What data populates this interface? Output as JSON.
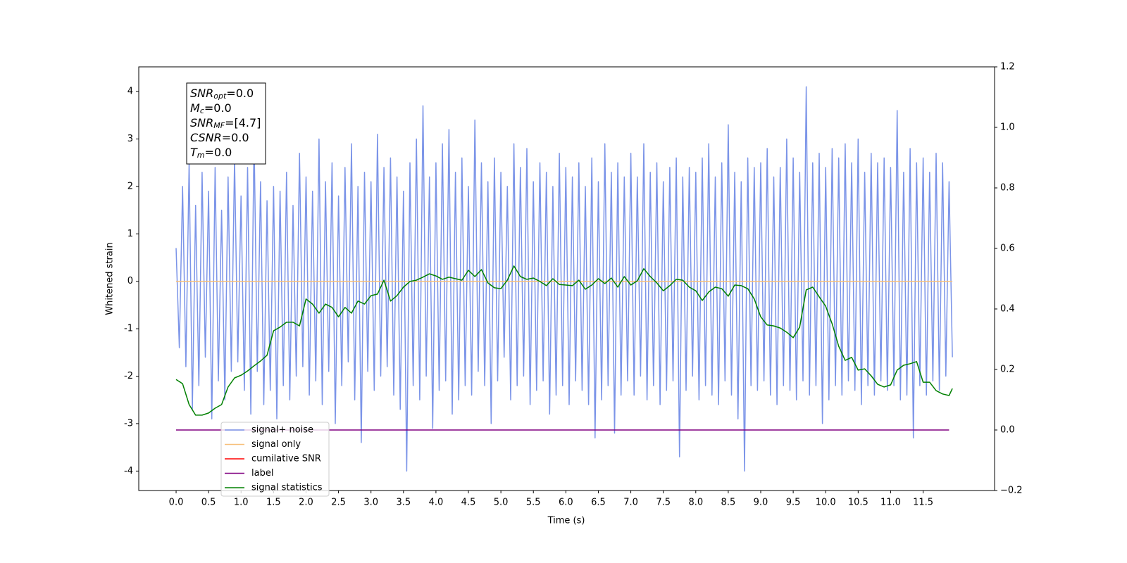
{
  "chart_data": {
    "type": "line",
    "xlabel": "Time (s)",
    "ylabel": "Whitened strain",
    "xlim": [
      -0.575,
      12.6
    ],
    "ylim": [
      -4.41,
      4.52
    ],
    "y2lim": [
      -0.2,
      1.2
    ],
    "xticks": [
      {
        "value": 0,
        "label": "0.0"
      },
      {
        "value": 0.5,
        "label": "0.5"
      },
      {
        "value": 1,
        "label": "1.0"
      },
      {
        "value": 1.5,
        "label": "1.5"
      },
      {
        "value": 2,
        "label": "2.0"
      },
      {
        "value": 2.5,
        "label": "2.5"
      },
      {
        "value": 3,
        "label": "3.0"
      },
      {
        "value": 3.5,
        "label": "3.5"
      },
      {
        "value": 4,
        "label": "4.0"
      },
      {
        "value": 4.5,
        "label": "4.5"
      },
      {
        "value": 5,
        "label": "5.0"
      },
      {
        "value": 5.5,
        "label": "5.5"
      },
      {
        "value": 6,
        "label": "6.0"
      },
      {
        "value": 6.5,
        "label": "6.5"
      },
      {
        "value": 7,
        "label": "7.0"
      },
      {
        "value": 7.5,
        "label": "7.5"
      },
      {
        "value": 8,
        "label": "8.0"
      },
      {
        "value": 8.5,
        "label": "8.5"
      },
      {
        "value": 9,
        "label": "9.0"
      },
      {
        "value": 9.5,
        "label": "9.5"
      },
      {
        "value": 10,
        "label": "10.0"
      },
      {
        "value": 10.5,
        "label": "10.5"
      },
      {
        "value": 11,
        "label": "11.0"
      },
      {
        "value": 11.5,
        "label": "11.5"
      }
    ],
    "yticks": [
      -4,
      -3,
      -2,
      -1,
      0,
      1,
      2,
      3,
      4
    ],
    "y2ticks": [
      {
        "value": -0.2,
        "label": "−0.2"
      },
      {
        "value": 0,
        "label": "0.0"
      },
      {
        "value": 0.2,
        "label": "0.2"
      },
      {
        "value": 0.4,
        "label": "0.4"
      },
      {
        "value": 0.6,
        "label": "0.6"
      },
      {
        "value": 0.8,
        "label": "0.8"
      },
      {
        "value": 1,
        "label": "1.0"
      },
      {
        "value": 1.2,
        "label": "1.2"
      }
    ],
    "legend": "lower left",
    "annotation": [
      {
        "main": "SNR",
        "sub": "opt",
        "rest": "=0.0"
      },
      {
        "main": "M",
        "sub": "c",
        "rest": "=0.0"
      },
      {
        "main": "SNR",
        "sub": "MF",
        "rest": "=[4.7]"
      },
      {
        "main": "CSNR",
        "rest": "=0.0"
      },
      {
        "main": "T",
        "sub": "m",
        "rest": "=0.0"
      }
    ],
    "series": [
      {
        "name": "signal+ noise",
        "color": "#7b94e8",
        "x": [
          0,
          0.05,
          0.1,
          0.15,
          0.2,
          0.25,
          0.3,
          0.35,
          0.4,
          0.45,
          0.5,
          0.55,
          0.6,
          0.65,
          0.7,
          0.75,
          0.8,
          0.85,
          0.9,
          0.95,
          1,
          1.05,
          1.1,
          1.15,
          1.2,
          1.25,
          1.3,
          1.35,
          1.4,
          1.45,
          1.5,
          1.55,
          1.6,
          1.65,
          1.7,
          1.75,
          1.8,
          1.85,
          1.9,
          1.95,
          2,
          2.05,
          2.1,
          2.15,
          2.2,
          2.25,
          2.3,
          2.35,
          2.4,
          2.45,
          2.5,
          2.55,
          2.6,
          2.65,
          2.7,
          2.75,
          2.8,
          2.85,
          2.9,
          2.95,
          3,
          3.05,
          3.1,
          3.15,
          3.2,
          3.25,
          3.3,
          3.35,
          3.4,
          3.45,
          3.5,
          3.55,
          3.6,
          3.65,
          3.7,
          3.75,
          3.8,
          3.85,
          3.9,
          3.95,
          4,
          4.05,
          4.1,
          4.15,
          4.2,
          4.25,
          4.3,
          4.35,
          4.4,
          4.45,
          4.5,
          4.55,
          4.6,
          4.65,
          4.7,
          4.75,
          4.8,
          4.85,
          4.9,
          4.95,
          5,
          5.05,
          5.1,
          5.15,
          5.2,
          5.25,
          5.3,
          5.35,
          5.4,
          5.45,
          5.5,
          5.55,
          5.6,
          5.65,
          5.7,
          5.75,
          5.8,
          5.85,
          5.9,
          5.95,
          6,
          6.05,
          6.1,
          6.15,
          6.2,
          6.25,
          6.3,
          6.35,
          6.4,
          6.45,
          6.5,
          6.55,
          6.6,
          6.65,
          6.7,
          6.75,
          6.8,
          6.85,
          6.9,
          6.95,
          7,
          7.05,
          7.1,
          7.15,
          7.2,
          7.25,
          7.3,
          7.35,
          7.4,
          7.45,
          7.5,
          7.55,
          7.6,
          7.65,
          7.7,
          7.75,
          7.8,
          7.85,
          7.9,
          7.95,
          8,
          8.05,
          8.1,
          8.15,
          8.2,
          8.25,
          8.3,
          8.35,
          8.4,
          8.45,
          8.5,
          8.55,
          8.6,
          8.65,
          8.7,
          8.75,
          8.8,
          8.85,
          8.9,
          8.95,
          9,
          9.05,
          9.1,
          9.15,
          9.2,
          9.25,
          9.3,
          9.35,
          9.4,
          9.45,
          9.5,
          9.55,
          9.6,
          9.65,
          9.7,
          9.75,
          9.8,
          9.85,
          9.9,
          9.95,
          10,
          10.05,
          10.1,
          10.15,
          10.2,
          10.25,
          10.3,
          10.35,
          10.4,
          10.45,
          10.5,
          10.55,
          10.6,
          10.65,
          10.7,
          10.75,
          10.8,
          10.85,
          10.9,
          10.95,
          11,
          11.05,
          11.1,
          11.15,
          11.2,
          11.25,
          11.3,
          11.35,
          11.4,
          11.45,
          11.5,
          11.55,
          11.6,
          11.65,
          11.7,
          11.75,
          11.8,
          11.85,
          11.9,
          11.95
        ],
        "values": [
          0.7,
          -1.4,
          2.0,
          -1.8,
          2.5,
          -2.7,
          1.6,
          -2.2,
          2.3,
          -1.6,
          1.9,
          -2.9,
          2.4,
          -2.1,
          1.5,
          -2.5,
          2.2,
          -1.9,
          2.6,
          -1.7,
          1.8,
          -2.3,
          2.4,
          -2.8,
          3.1,
          -1.9,
          2.1,
          -2.6,
          1.7,
          -2.3,
          2.0,
          -2.9,
          1.9,
          -2.2,
          2.3,
          -2.5,
          1.6,
          -2.0,
          2.7,
          -1.8,
          2.2,
          -2.4,
          1.9,
          -2.1,
          3.0,
          -2.6,
          2.1,
          -1.9,
          2.5,
          -3.0,
          1.8,
          -2.2,
          2.4,
          -1.7,
          2.9,
          -2.5,
          2.0,
          -3.4,
          2.3,
          -1.9,
          2.1,
          -2.3,
          3.1,
          -2.0,
          2.4,
          -1.8,
          2.6,
          -2.4,
          2.2,
          -2.7,
          1.9,
          -4.0,
          2.5,
          -2.2,
          3.0,
          -2.5,
          3.7,
          -2.0,
          2.2,
          -3.1,
          2.5,
          -2.3,
          2.9,
          -2.1,
          3.2,
          -2.8,
          2.3,
          -2.5,
          2.6,
          -2.2,
          2.0,
          -2.4,
          3.4,
          -1.9,
          2.5,
          -2.2,
          2.1,
          -3.0,
          2.6,
          -2.1,
          2.3,
          -1.6,
          2.0,
          -2.5,
          2.9,
          -2.2,
          2.4,
          -2.0,
          2.8,
          -2.6,
          2.1,
          -2.3,
          2.5,
          -2.1,
          2.3,
          -2.8,
          2.0,
          -2.4,
          2.7,
          -2.2,
          2.4,
          -2.6,
          2.2,
          -2.1,
          2.5,
          -2.3,
          2.0,
          -2.6,
          2.6,
          -3.3,
          2.1,
          -2.5,
          2.9,
          -2.2,
          2.3,
          -3.2,
          2.5,
          -2.4,
          2.2,
          -2.1,
          2.7,
          -2.4,
          2.2,
          -2.0,
          2.9,
          -2.5,
          2.3,
          -2.2,
          2.5,
          -2.6,
          2.1,
          -2.3,
          2.4,
          -2.1,
          2.6,
          -3.7,
          2.2,
          -2.3,
          2.4,
          -2.0,
          2.3,
          -2.5,
          2.6,
          -2.2,
          2.9,
          -2.4,
          2.2,
          -2.6,
          2.5,
          -2.1,
          3.3,
          -2.4,
          2.3,
          -2.9,
          2.1,
          -4.0,
          2.6,
          -2.2,
          2.4,
          -2.3,
          2.5,
          -2.1,
          2.8,
          -2.4,
          2.2,
          -2.6,
          2.4,
          -2.2,
          3.0,
          -2.3,
          2.6,
          -2.5,
          2.3,
          -2.1,
          4.1,
          -2.4,
          2.5,
          -2.2,
          2.7,
          -3.0,
          2.4,
          -2.5,
          2.8,
          -2.2,
          2.6,
          -2.4,
          2.9,
          -2.1,
          2.5,
          -2.3,
          3.0,
          -2.6,
          2.3,
          -2.2,
          2.7,
          -2.4,
          2.5,
          -2.1,
          2.6,
          -2.3,
          2.4,
          -2.2,
          3.6,
          -2.5,
          2.3,
          -2.4,
          2.8,
          -3.3,
          2.5,
          -2.2,
          2.6,
          -2.4,
          2.3,
          -2.1,
          2.7,
          -2.3,
          2.5,
          -2.0,
          2.1,
          -1.6
        ]
      },
      {
        "name": "signal only",
        "color": "#f7c07a",
        "x": [
          0,
          11.95
        ],
        "values": [
          0,
          0
        ]
      },
      {
        "name": "cumilative SNR",
        "color": "#ff0000",
        "x": [],
        "values": []
      },
      {
        "name": "label",
        "color": "#800080",
        "axis": "y2",
        "x": [
          0,
          11.9
        ],
        "values": [
          0,
          0
        ]
      },
      {
        "name": "signal statistics",
        "color": "#008000",
        "axis": "y2",
        "x": [
          0,
          0.1,
          0.2,
          0.3,
          0.4,
          0.5,
          0.6,
          0.7,
          0.8,
          0.9,
          1,
          1.1,
          1.2,
          1.3,
          1.4,
          1.5,
          1.6,
          1.7,
          1.8,
          1.9,
          2,
          2.1,
          2.2,
          2.3,
          2.4,
          2.5,
          2.6,
          2.7,
          2.8,
          2.9,
          3,
          3.1,
          3.2,
          3.3,
          3.4,
          3.5,
          3.6,
          3.7,
          3.8,
          3.9,
          4,
          4.1,
          4.2,
          4.3,
          4.4,
          4.5,
          4.6,
          4.7,
          4.8,
          4.9,
          5,
          5.1,
          5.2,
          5.3,
          5.4,
          5.5,
          5.6,
          5.7,
          5.8,
          5.9,
          6,
          6.1,
          6.2,
          6.3,
          6.4,
          6.5,
          6.6,
          6.7,
          6.8,
          6.9,
          7,
          7.1,
          7.2,
          7.3,
          7.4,
          7.5,
          7.6,
          7.7,
          7.8,
          7.9,
          8,
          8.1,
          8.2,
          8.3,
          8.4,
          8.5,
          8.6,
          8.7,
          8.8,
          8.9,
          9,
          9.1,
          9.2,
          9.3,
          9.4,
          9.5,
          9.6,
          9.7,
          9.8,
          9.9,
          10,
          10.1,
          10.2,
          10.3,
          10.4,
          10.5,
          10.6,
          10.7,
          10.8,
          10.9,
          11,
          11.1,
          11.2,
          11.3,
          11.4,
          11.5,
          11.6,
          11.7,
          11.8,
          11.9,
          11.95
        ],
        "values": [
          0.167,
          0.153,
          0.084,
          0.049,
          0.049,
          0.056,
          0.072,
          0.084,
          0.142,
          0.172,
          0.181,
          0.195,
          0.212,
          0.228,
          0.247,
          0.328,
          0.34,
          0.356,
          0.356,
          0.344,
          0.433,
          0.416,
          0.386,
          0.416,
          0.405,
          0.374,
          0.405,
          0.386,
          0.426,
          0.416,
          0.444,
          0.449,
          0.495,
          0.426,
          0.444,
          0.472,
          0.491,
          0.495,
          0.505,
          0.516,
          0.509,
          0.498,
          0.505,
          0.5,
          0.495,
          0.528,
          0.507,
          0.53,
          0.486,
          0.47,
          0.467,
          0.495,
          0.542,
          0.507,
          0.498,
          0.502,
          0.491,
          0.477,
          0.5,
          0.481,
          0.479,
          0.477,
          0.495,
          0.465,
          0.479,
          0.5,
          0.484,
          0.502,
          0.472,
          0.507,
          0.479,
          0.493,
          0.533,
          0.507,
          0.486,
          0.46,
          0.477,
          0.498,
          0.495,
          0.472,
          0.46,
          0.428,
          0.456,
          0.472,
          0.467,
          0.442,
          0.479,
          0.477,
          0.467,
          0.433,
          0.374,
          0.347,
          0.344,
          0.337,
          0.323,
          0.305,
          0.34,
          0.463,
          0.472,
          0.44,
          0.409,
          0.351,
          0.277,
          0.23,
          0.24,
          0.198,
          0.202,
          0.179,
          0.151,
          0.142,
          0.149,
          0.198,
          0.214,
          0.219,
          0.226,
          0.158,
          0.158,
          0.13,
          0.119,
          0.114,
          0.137
        ]
      }
    ]
  }
}
